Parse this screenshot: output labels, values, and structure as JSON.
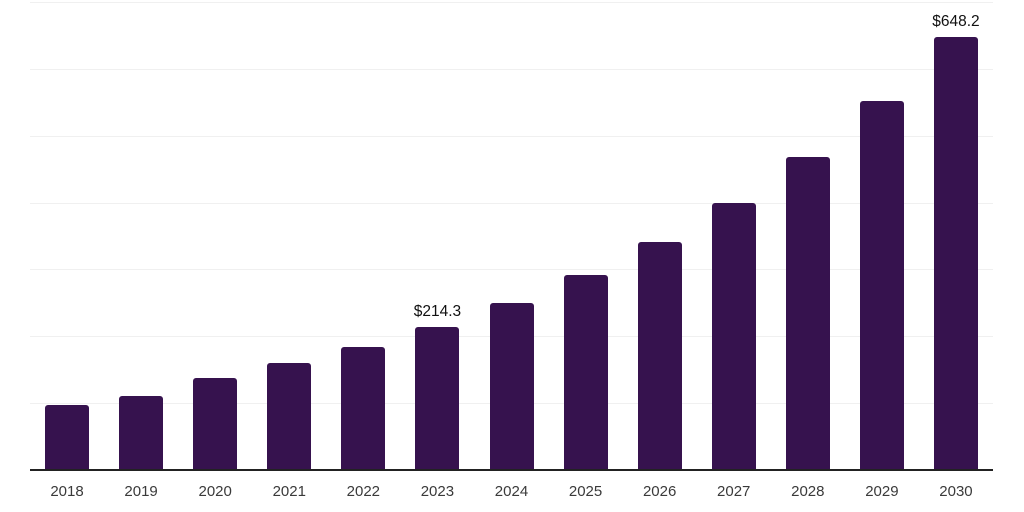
{
  "chart_data": {
    "type": "bar",
    "title": "",
    "xlabel": "",
    "ylabel": "",
    "categories": [
      "2018",
      "2019",
      "2020",
      "2021",
      "2022",
      "2023",
      "2024",
      "2025",
      "2026",
      "2027",
      "2028",
      "2029",
      "2030"
    ],
    "values": [
      97,
      111,
      138,
      160,
      184,
      214.3,
      250,
      292,
      341,
      399,
      468,
      552,
      648.2
    ],
    "annotations": [
      {
        "category": "2023",
        "text": "$214.3"
      },
      {
        "category": "2030",
        "text": "$648.2"
      }
    ],
    "ylim": [
      0,
      700
    ],
    "grid_step": 100,
    "grid": "horizontal",
    "legend": false,
    "y_axis_tick_labels_visible": false
  },
  "colors": {
    "bar": "#36124E",
    "gridline": "#f0f0f0",
    "axis_line": "#222222",
    "tick_label": "#3a3a3a",
    "value_label": "#111111",
    "background": "#ffffff"
  }
}
